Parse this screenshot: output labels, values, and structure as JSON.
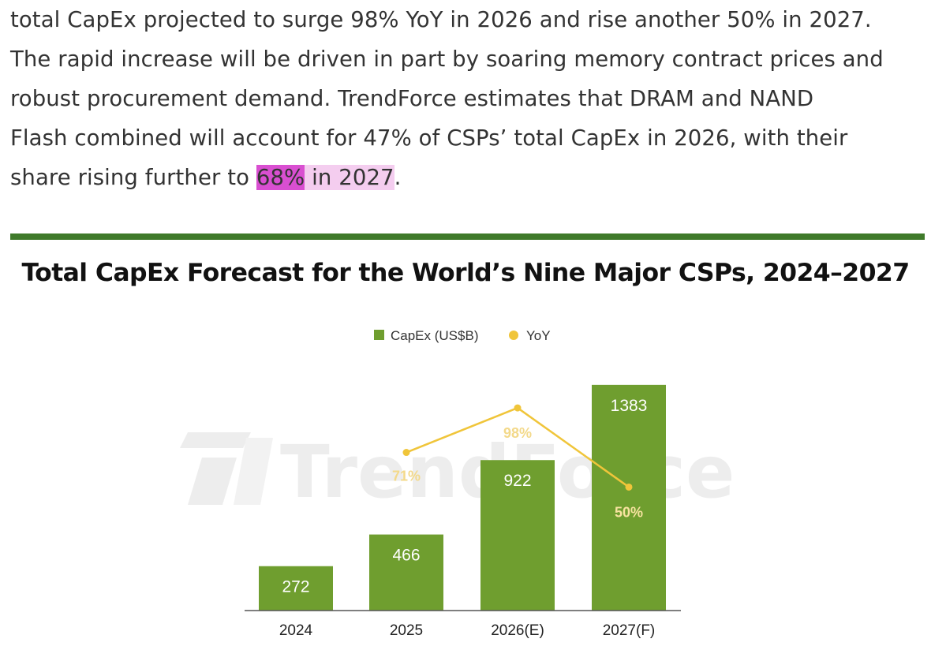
{
  "article": {
    "line1": "total CapEx projected to surge 98% YoY in 2026 and rise another 50% in 2027.",
    "line2": "The rapid increase will be driven in part by soaring memory contract prices and",
    "line3": "robust procurement demand. TrendForce estimates that DRAM and NAND",
    "line4": "Flash combined will account for 47% of CSPs’ total CapEx in 2026, with their",
    "line5_start": "share rising further to ",
    "line5_highlight_strong": "68%",
    "line5_highlight_soft": " in 2027",
    "line5_end": "."
  },
  "colors": {
    "bar": "#6f9e2f",
    "yoy_line": "#f0c53a",
    "highlight_strong": "#d94fd1",
    "highlight_soft": "#f4cdef",
    "divider": "#3f7a2a"
  },
  "watermark": {
    "text": "TrendForce"
  },
  "chart_data": {
    "type": "bar",
    "title": "Total CapEx Forecast for the World’s Nine Major CSPs, 2024–2027",
    "categories": [
      "2024",
      "2025",
      "2026(E)",
      "2027(F)"
    ],
    "series": [
      {
        "name": "CapEx (US$B)",
        "type": "bar",
        "values": [
          272,
          466,
          922,
          1383
        ],
        "labels": [
          "272",
          "466",
          "922",
          "1383"
        ]
      },
      {
        "name": "YoY",
        "type": "line",
        "values": [
          null,
          71,
          98,
          50
        ],
        "labels": [
          "",
          "71%",
          "98%",
          "50%"
        ]
      }
    ],
    "legend": {
      "position": "top-center",
      "items": [
        "CapEx (US$B)",
        "YoY"
      ]
    },
    "xlabel": "",
    "ylabel": "",
    "ylim": [
      0,
      1450
    ],
    "yoy_lim": [
      0,
      110
    ],
    "grid": false
  }
}
